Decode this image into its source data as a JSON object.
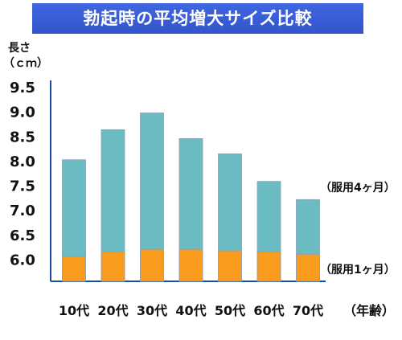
{
  "chart_data": {
    "type": "bar",
    "title": "勃起時の平均増大サイズ比較",
    "ylabel_line1": "長さ",
    "ylabel_line2": "（ｃｍ）",
    "xlabel": "（年齢）",
    "categories": [
      "10代",
      "20代",
      "30代",
      "40代",
      "50代",
      "60代",
      "70代"
    ],
    "yticks": [
      "9.5",
      "9.0",
      "8.5",
      "8.0",
      "7.5",
      "7.0",
      "6.5",
      "6.0"
    ],
    "ylim": [
      5.55,
      9.55
    ],
    "grid": false,
    "series": [
      {
        "name": "（服用4ヶ月）",
        "values": [
          8.02,
          8.63,
          8.97,
          8.45,
          8.14,
          7.58,
          7.21
        ],
        "color": "#6bbbc3"
      },
      {
        "name": "（服用1ヶ月）",
        "values": [
          6.05,
          6.15,
          6.2,
          6.2,
          6.17,
          6.15,
          6.1
        ],
        "color": "#f99b1c"
      }
    ]
  }
}
